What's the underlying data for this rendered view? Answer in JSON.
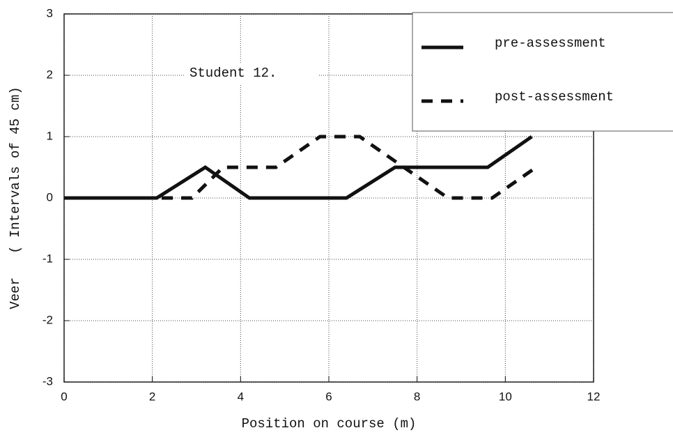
{
  "chart_data": {
    "type": "line",
    "annotation": "Student 12.",
    "xlabel": "Position on course (m)",
    "ylabel": "Veer   ( Intervals of 45 cm)",
    "xlim": [
      0,
      12
    ],
    "xticks": [
      0,
      2,
      4,
      6,
      8,
      10,
      12
    ],
    "ylim": [
      -3,
      3
    ],
    "yticks": [
      -3,
      -2,
      -1,
      0,
      1,
      2,
      3
    ],
    "grid": true,
    "legend": "upper right",
    "series": [
      {
        "name": "pre-assessment",
        "color": "#111111",
        "linestyle": "solid",
        "x": [
          0,
          2.1,
          3.2,
          4.2,
          6.4,
          7.5,
          9.6,
          10.6
        ],
        "values": [
          0,
          0,
          0.5,
          0,
          0,
          0.5,
          0.5,
          1
        ]
      },
      {
        "name": "post-assessment",
        "color": "#111111",
        "linestyle": "dashed",
        "x": [
          0,
          2.9,
          3.6,
          4.8,
          5.8,
          6.7,
          8.7,
          9.7,
          10.7
        ],
        "values": [
          0,
          0,
          0.5,
          0.5,
          1,
          1,
          0,
          0,
          0.5
        ]
      }
    ]
  }
}
